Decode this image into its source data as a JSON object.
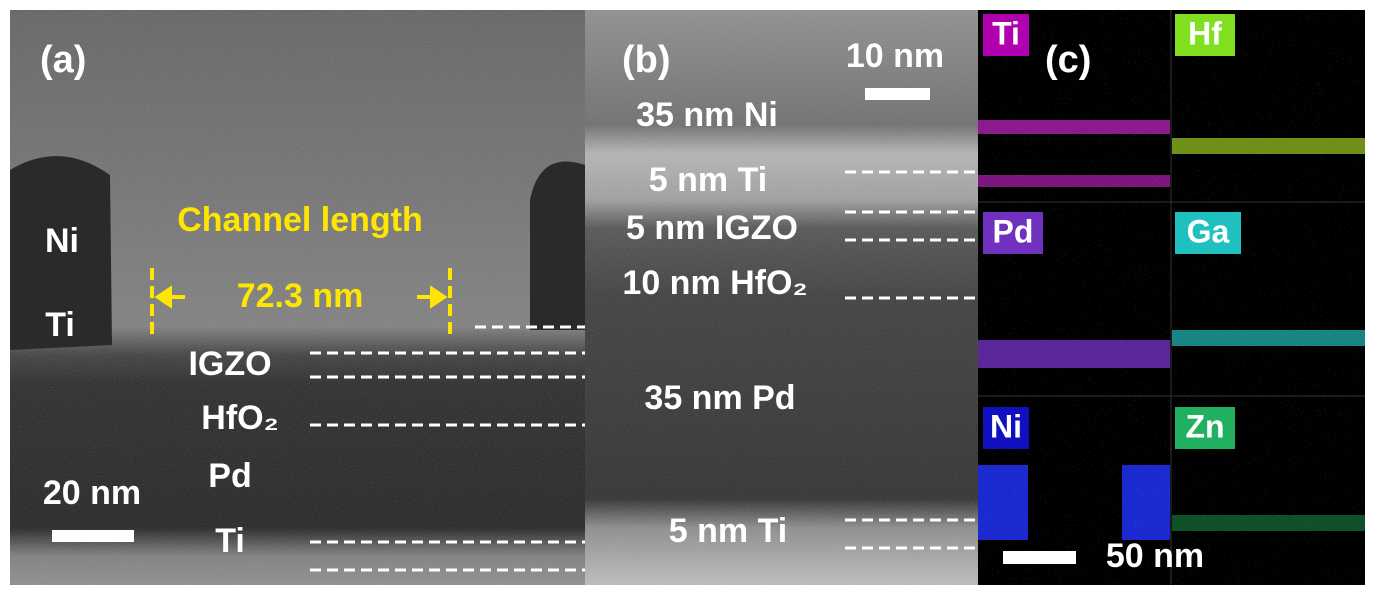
{
  "panels": {
    "a": {
      "label": "(a)",
      "channel_length": "Channel length",
      "length_value": "72.3 nm",
      "layers": [
        "Ni",
        "Ti",
        "IGZO",
        "HfO₂",
        "Pd",
        "Ti"
      ],
      "scale_bar": "20 nm"
    },
    "b": {
      "label": "(b)",
      "scale_bar": "10 nm",
      "layers": [
        "35 nm Ni",
        "5 nm Ti",
        "5 nm IGZO",
        "10 nm HfO₂",
        "35 nm Pd",
        "5 nm Ti"
      ]
    },
    "c": {
      "label": "(c)",
      "scale_bar": "50 nm",
      "maps": [
        "Ti",
        "Hf",
        "Pd",
        "Ga",
        "Ni",
        "Zn"
      ]
    }
  }
}
